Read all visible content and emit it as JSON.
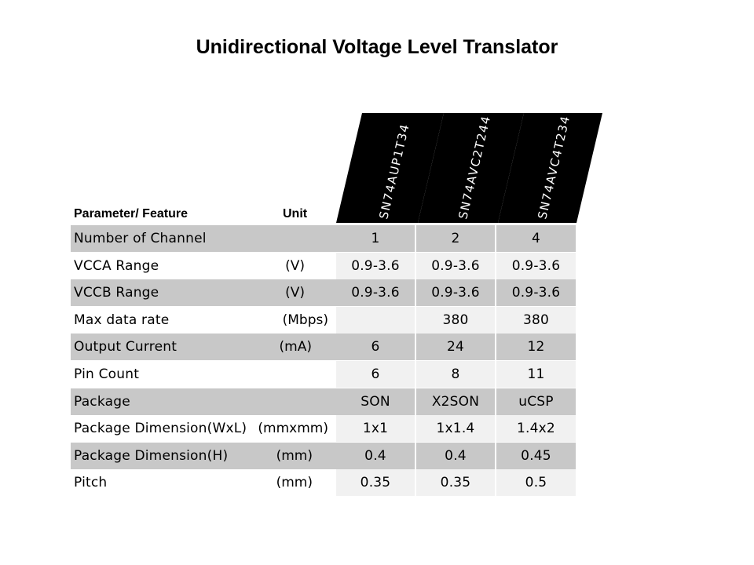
{
  "title": "Unidirectional Voltage Level Translator",
  "header": {
    "param_label": "Parameter/ Feature",
    "unit_label": "Unit",
    "parts": [
      "SN74AUP1T34",
      "SN74AVC2T244",
      "SN74AVC4T234"
    ]
  },
  "rows": [
    {
      "param": "Number of Channel",
      "unit": "",
      "v": [
        "1",
        "2",
        "4"
      ]
    },
    {
      "param": "VCCA Range",
      "unit": "(V)",
      "v": [
        "0.9-3.6",
        "0.9-3.6",
        "0.9-3.6"
      ]
    },
    {
      "param": "VCCB Range",
      "unit": "(V)",
      "v": [
        "0.9-3.6",
        "0.9-3.6",
        "0.9-3.6"
      ]
    },
    {
      "param": "Max data rate",
      "unit": "(Mbps)",
      "v": [
        "",
        "380",
        "380"
      ]
    },
    {
      "param": "Output Current",
      "unit": "(mA)",
      "v": [
        "6",
        "24",
        "12"
      ]
    },
    {
      "param": "Pin Count",
      "unit": "",
      "v": [
        "6",
        "8",
        "11"
      ]
    },
    {
      "param": "Package",
      "unit": "",
      "v": [
        "SON",
        "X2SON",
        "uCSP"
      ]
    },
    {
      "param": "Package Dimension(WxL)",
      "unit": "(mmxmm)",
      "v": [
        "1x1",
        "1x1.4",
        "1.4x2"
      ]
    },
    {
      "param": "Package Dimension(H)",
      "unit": "(mm)",
      "v": [
        "0.4",
        "0.4",
        "0.45"
      ]
    },
    {
      "param": "Pitch",
      "unit": "(mm)",
      "v": [
        "0.35",
        "0.35",
        "0.5"
      ]
    }
  ]
}
